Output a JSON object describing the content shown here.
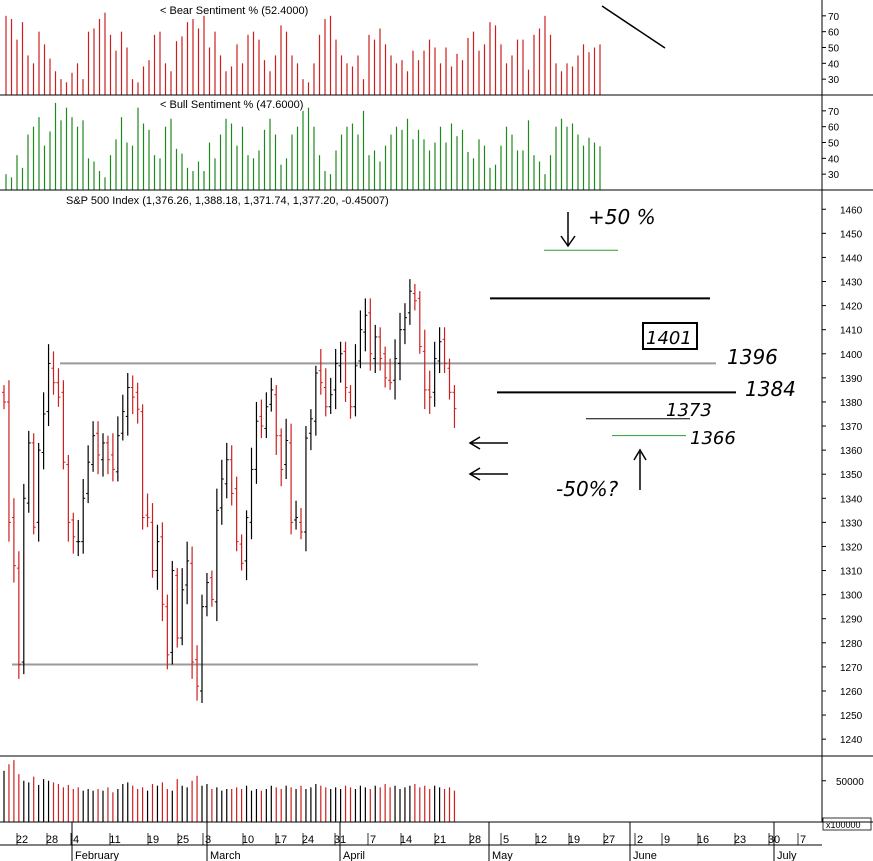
{
  "colors": {
    "up": "#000000",
    "down": "#cc1f1f",
    "bear": "#cc1f1f",
    "bull": "#1e8a1e",
    "ref": "#9a9a9a",
    "green_line": "#2aa02a",
    "grid": "#000000"
  },
  "bear_panel": {
    "label": "< Bear Sentiment % (52.4000)",
    "ticks": [
      "70",
      "60",
      "50",
      "40",
      "30"
    ],
    "ylim": [
      20,
      80
    ]
  },
  "bull_panel": {
    "label": "< Bull Sentiment % (47.6000)",
    "ticks": [
      "70",
      "60",
      "50",
      "40",
      "30"
    ],
    "ylim": [
      20,
      80
    ]
  },
  "price_panel": {
    "label": "S&P 500 Index (1,376.26, 1,388.18, 1,371.74, 1,377.20, -0.45007)",
    "ticks": [
      "1460",
      "1450",
      "1440",
      "1430",
      "1420",
      "1410",
      "1400",
      "1390",
      "1380",
      "1370",
      "1360",
      "1350",
      "1340",
      "1330",
      "1320",
      "1310",
      "1300",
      "1290",
      "1280",
      "1270",
      "1260",
      "1250",
      "1240"
    ],
    "ylim": [
      1233,
      1468
    ]
  },
  "volume_panel": {
    "ticks": [
      "50000"
    ],
    "unit_label": "x100000"
  },
  "x_axis": {
    "day_labels": [
      "22",
      "28",
      "4",
      "11",
      "19",
      "25",
      "3",
      "10",
      "17",
      "24",
      "31",
      "7",
      "14",
      "21",
      "28",
      "5",
      "12",
      "19",
      "27",
      "2",
      "9",
      "16",
      "23",
      "30",
      "7"
    ],
    "months": [
      "February",
      "March",
      "April",
      "May",
      "June",
      "July"
    ]
  },
  "annotations": {
    "plus50": "+50 %",
    "minus50": "-50%?",
    "box1401": "1401",
    "lvl1396": "1396",
    "lvl1384": "1384",
    "lvl1373": "1373",
    "lvl1366": "1366"
  },
  "chart_data": [
    {
      "type": "bar",
      "title": "< Bear Sentiment % (52.4000)",
      "last_value": 52.4,
      "ylim": [
        20,
        80
      ],
      "values": [
        70,
        68,
        55,
        66,
        45,
        40,
        60,
        52,
        43,
        35,
        30,
        28,
        34,
        40,
        30,
        60,
        62,
        68,
        72,
        58,
        48,
        60,
        50,
        30,
        28,
        38,
        42,
        58,
        60,
        40,
        35,
        54,
        57,
        66,
        68,
        62,
        70,
        50,
        60,
        45,
        35,
        38,
        52,
        40,
        58,
        60,
        55,
        42,
        35,
        45,
        64,
        60,
        45,
        40,
        30,
        28,
        40,
        58,
        68,
        70,
        55,
        45,
        40,
        38,
        45,
        30,
        58,
        55,
        62,
        52,
        45,
        40,
        42,
        35,
        48,
        42,
        48,
        55,
        50,
        40,
        50,
        38,
        46,
        42,
        56,
        60,
        48,
        52,
        66,
        64,
        52,
        40,
        45,
        55,
        55,
        36,
        58,
        62,
        70,
        58,
        40,
        35,
        40,
        38,
        45,
        52,
        47,
        50,
        52
      ]
    },
    {
      "type": "bar",
      "title": "< Bull Sentiment % (47.6000)",
      "last_value": 47.6,
      "ylim": [
        20,
        80
      ],
      "values": [
        30,
        28,
        42,
        34,
        55,
        60,
        66,
        48,
        57,
        75,
        64,
        72,
        66,
        60,
        64,
        40,
        38,
        32,
        28,
        42,
        52,
        66,
        50,
        48,
        72,
        62,
        58,
        42,
        40,
        60,
        65,
        46,
        43,
        34,
        32,
        38,
        32,
        50,
        40,
        55,
        65,
        62,
        48,
        60,
        42,
        40,
        45,
        58,
        65,
        55,
        36,
        40,
        55,
        60,
        70,
        72,
        60,
        42,
        32,
        30,
        45,
        55,
        60,
        62,
        55,
        70,
        42,
        45,
        38,
        48,
        55,
        60,
        58,
        65,
        52,
        58,
        52,
        45,
        50,
        60,
        50,
        62,
        54,
        58,
        44,
        40,
        52,
        48,
        34,
        36,
        48,
        60,
        55,
        45,
        45,
        64,
        42,
        38,
        30,
        42,
        60,
        65,
        60,
        62,
        55,
        48,
        53,
        50,
        47.6
      ]
    },
    {
      "type": "bar",
      "title": "S&P 500 Index (1,376.26, 1,388.18, 1,371.74, 1,377.20, -0.45007)",
      "series_kind": "ohlc",
      "ylim": [
        1233,
        1468
      ],
      "closes": [
        1380,
        1330,
        1312,
        1271,
        1340,
        1363,
        1328,
        1360,
        1375,
        1396,
        1388,
        1382,
        1355,
        1330,
        1324,
        1322,
        1340,
        1355,
        1366,
        1358,
        1363,
        1356,
        1352,
        1366,
        1376,
        1386,
        1382,
        1377,
        1332,
        1332,
        1310,
        1322,
        1296,
        1275,
        1310,
        1282,
        1302,
        1314,
        1272,
        1262,
        1295,
        1305,
        1298,
        1335,
        1348,
        1356,
        1342,
        1322,
        1313,
        1332,
        1352,
        1372,
        1370,
        1378,
        1385,
        1366,
        1352,
        1364,
        1330,
        1332,
        1326,
        1365,
        1373,
        1392,
        1388,
        1378,
        1383,
        1396,
        1400,
        1386,
        1378,
        1395,
        1410,
        1416,
        1400,
        1407,
        1398,
        1390,
        1388,
        1398,
        1410,
        1415,
        1426,
        1422,
        1403,
        1385,
        1382,
        1398,
        1405,
        1396,
        1384,
        1377.2
      ],
      "reference_levels": [
        1396,
        1384,
        1373,
        1366,
        1423,
        1443,
        1271
      ]
    },
    {
      "type": "bar",
      "title": "Volume",
      "unit": "x100000",
      "ylim": [
        0,
        80000
      ],
      "values": [
        62000,
        70000,
        75000,
        58000,
        50000,
        48000,
        55000,
        45000,
        52000,
        50000,
        48000,
        46000,
        42000,
        45000,
        40000,
        42000,
        38000,
        40000,
        38000,
        40000,
        38000,
        42000,
        36000,
        40000,
        46000,
        48000,
        44000,
        40000,
        42000,
        38000,
        46000,
        44000,
        48000,
        40000,
        38000,
        52000,
        44000,
        42000,
        50000,
        56000,
        44000,
        46000,
        40000,
        42000,
        38000,
        40000,
        40000,
        42000,
        40000,
        44000,
        38000,
        40000,
        38000,
        40000,
        44000,
        42000,
        40000,
        44000,
        42000,
        40000,
        44000,
        40000,
        42000,
        46000,
        44000,
        42000,
        40000,
        42000,
        40000,
        44000,
        42000,
        40000,
        44000,
        42000,
        40000,
        44000,
        42000,
        46000,
        42000,
        44000,
        40000,
        42000,
        44000,
        46000,
        42000,
        44000,
        40000,
        44000,
        42000,
        40000,
        42000,
        38000
      ]
    }
  ]
}
